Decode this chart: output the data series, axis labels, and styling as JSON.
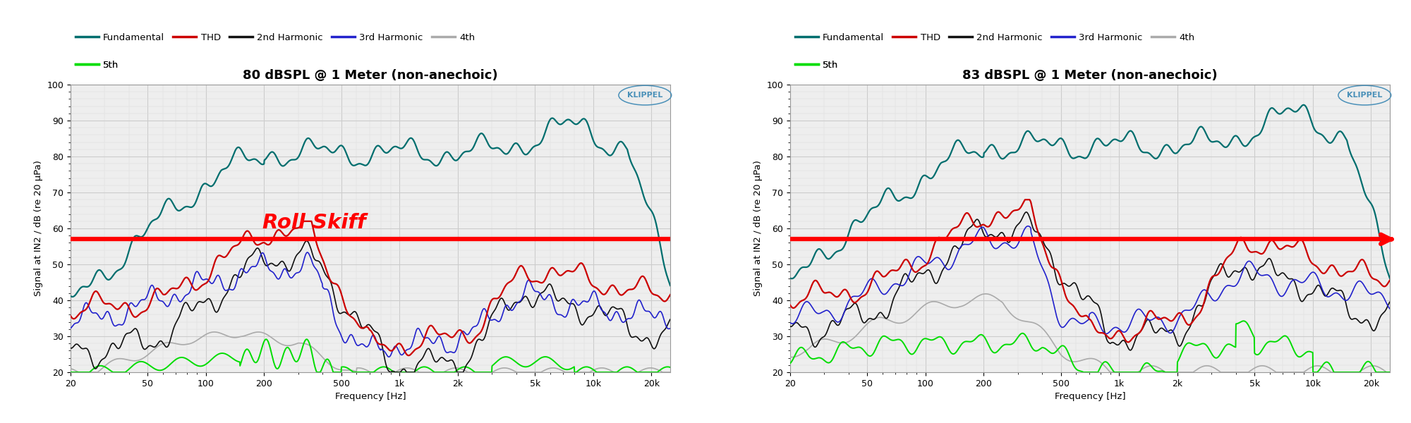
{
  "title_left": "80 dBSPL @ 1 Meter (non-anechoic)",
  "title_right": "83 dBSPL @ 1 Meter (non-anechoic)",
  "ylabel": "Signal at IN2 / dB (re 20 μPa)",
  "xlabel": "Frequency [Hz]",
  "ylim": [
    20,
    100
  ],
  "yticks": [
    20,
    30,
    40,
    50,
    60,
    70,
    80,
    90,
    100
  ],
  "freq_ticks": [
    20,
    50,
    100,
    200,
    500,
    1000,
    2000,
    5000,
    10000,
    20000
  ],
  "freq_labels": [
    "20",
    "50",
    "100",
    "200",
    "500",
    "1k",
    "2k",
    "5k",
    "10k",
    "20k"
  ],
  "colors": {
    "fundamental": "#006E6E",
    "thd": "#cc0000",
    "h2": "#111111",
    "h3": "#2222cc",
    "h4": "#aaaaaa",
    "h5": "#00dd00"
  },
  "legend_labels_row1": [
    "Fundamental",
    "THD",
    "2nd Harmonic",
    "3rd Harmonic",
    "4th"
  ],
  "legend_labels_row2": [
    "5th"
  ],
  "annotation_left": "Roll Skiff",
  "annotation_color": "#ff0000",
  "red_line_y": 57,
  "background_color": "#ffffff",
  "plot_bg": "#eeeeee",
  "grid_color": "#cccccc",
  "klippel_color": "#4a90b8",
  "title_fontsize": 13,
  "label_fontsize": 9.5,
  "tick_fontsize": 9
}
